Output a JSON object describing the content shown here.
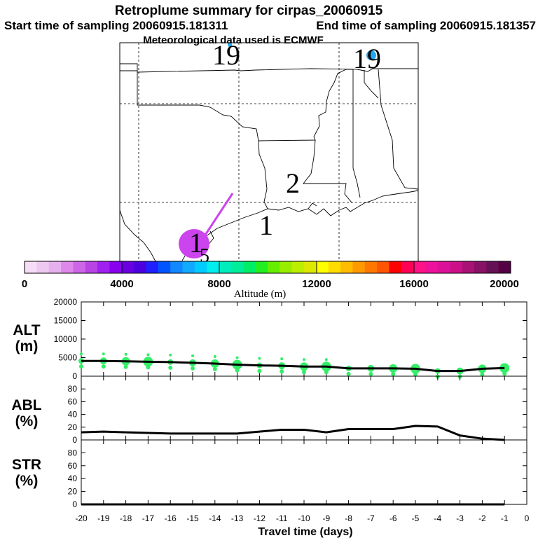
{
  "header": {
    "title": "Retroplume summary for cirpas_20060915",
    "start_sampling": "Start time of sampling 20060915.181311",
    "end_sampling": "End time of sampling 20060915.181357",
    "met_data": "Meteorological data used is ECMWF"
  },
  "map": {
    "day_markers": [
      "19",
      "19",
      "2",
      "1",
      "1",
      "5"
    ],
    "plume_color": "#cc44ee",
    "receptor_color": "#22aaee"
  },
  "colorbar": {
    "label": "Altitude (m)",
    "tick_labels": [
      "0",
      "4000",
      "8000",
      "12000",
      "16000",
      "20000"
    ],
    "colors": [
      "#f6dcf6",
      "#eec8f0",
      "#e6b0ee",
      "#dd88ea",
      "#cc66e6",
      "#b844e4",
      "#a020f0",
      "#8800ee",
      "#6a00e0",
      "#4c00e0",
      "#2020ff",
      "#0055ff",
      "#1188ff",
      "#11aaff",
      "#00ccff",
      "#00eeee",
      "#00eebb",
      "#00ee99",
      "#00ee66",
      "#22ee22",
      "#66ee00",
      "#99ee00",
      "#bbee00",
      "#dde800",
      "#ffff00",
      "#ffdd00",
      "#ffbb00",
      "#ff9900",
      "#ff7700",
      "#ff5500",
      "#ff0000",
      "#ff0055",
      "#ff1188",
      "#ee1199",
      "#dd1199",
      "#cc1188",
      "#aa1177",
      "#881166",
      "#661155",
      "#550044"
    ]
  },
  "chart_data": [
    {
      "type": "line",
      "panel": "ALT (m)",
      "ylabel": [
        "ALT",
        "(m)"
      ],
      "ylim": [
        0,
        20000
      ],
      "y_ticks": [
        "0",
        "5000",
        "10000",
        "15000",
        "20000"
      ],
      "x": [
        -20,
        -19,
        -18,
        -17,
        -16,
        -15,
        -14,
        -13,
        -12,
        -11,
        -10,
        -9,
        -8,
        -7,
        -6,
        -5,
        -4,
        -3,
        -2,
        -1
      ],
      "series": [
        {
          "values": [
            4100,
            4100,
            4000,
            3900,
            3800,
            3600,
            3400,
            3100,
            2900,
            2800,
            2600,
            2600,
            2100,
            2100,
            2100,
            2000,
            1400,
            1400,
            2000,
            2200
          ]
        }
      ],
      "plume_color": "#33ee66"
    },
    {
      "type": "line",
      "panel": "ABL (%)",
      "ylabel": [
        "ABL",
        "(%)"
      ],
      "ylim": [
        0,
        100
      ],
      "y_ticks": [
        "0",
        "20",
        "40",
        "60",
        "80"
      ],
      "x": [
        -20,
        -19,
        -18,
        -17,
        -16,
        -15,
        -14,
        -13,
        -12,
        -11,
        -10,
        -9,
        -8,
        -7,
        -6,
        -5,
        -4,
        -3,
        -2,
        -1
      ],
      "series": [
        {
          "values": [
            12,
            13,
            12,
            11,
            10,
            10,
            10,
            10,
            13,
            16,
            16,
            12,
            17,
            17,
            17,
            22,
            21,
            7,
            2,
            0
          ]
        }
      ]
    },
    {
      "type": "line",
      "panel": "STR (%)",
      "ylabel": [
        "STR",
        "(%)"
      ],
      "ylim": [
        0,
        100
      ],
      "y_ticks": [
        "0",
        "20",
        "40",
        "60",
        "80"
      ],
      "x": [
        -20,
        -19,
        -18,
        -17,
        -16,
        -15,
        -14,
        -13,
        -12,
        -11,
        -10,
        -9,
        -8,
        -7,
        -6,
        -5,
        -4,
        -3,
        -2,
        -1
      ],
      "series": [
        {
          "values": [
            0,
            0,
            0,
            0,
            0,
            0,
            0,
            0,
            0,
            0,
            0,
            0,
            0,
            0,
            0,
            0,
            0,
            0,
            0,
            0
          ]
        }
      ],
      "xlabel": "Travel time (days)",
      "x_ticks": [
        "-20",
        "-19",
        "-18",
        "-17",
        "-16",
        "-15",
        "-14",
        "-13",
        "-12",
        "-11",
        "-10",
        "-9",
        "-8",
        "-7",
        "-6",
        "-5",
        "-4",
        "-3",
        "-2",
        "-1",
        "0"
      ]
    }
  ]
}
